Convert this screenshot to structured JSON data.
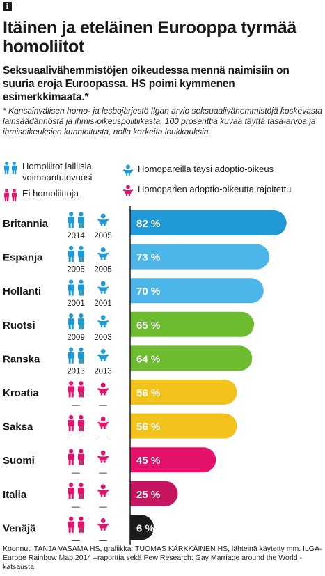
{
  "badge": "i",
  "title": "Itäinen ja eteläinen Eurooppa tyrmää homoliitot",
  "lead": "Seksuaalivähemmistöjen oikeudessa mennä naimisiin on suuria eroja Euroopassa. HS poimi kymmenen esimerkkimaata.*",
  "note": "* Kansainvälisen homo- ja lesbojärjestö Ilgan arvio seksuaalivähemmistöjä koskevasta lainsäädännöstä ja ihmis-oikeuspolitiikasta. 100 prosenttia kuvaa täyttä tasa-arvoa ja ihmisoikeuksien kunnioitusta, nolla karkeita loukkauksia.",
  "legend": {
    "marriage_legal": "Homoliitot laillisia, voimaantulovuosi",
    "no_marriage": "Ei homoliittoja",
    "adoption_full": "Homopareilla täysi adoptio-oikeus",
    "adoption_restricted": "Homoparien adoptio-oikeutta rajoitettu"
  },
  "colors": {
    "blue_icon": "#1e9ad6",
    "pink_icon": "#e3136b",
    "bar_blue": "#1f9ad6",
    "bar_lightblue": "#4cb6e8",
    "bar_green": "#6dbb2f",
    "bar_yellow": "#f3c21b",
    "bar_pink": "#e3136b",
    "bar_dark_pink": "#c81560",
    "bar_black": "#1a1a1a"
  },
  "chart_data": {
    "type": "bar",
    "orientation": "horizontal",
    "xlim": [
      0,
      100
    ],
    "unit": "%",
    "categories": [
      "Britannia",
      "Espanja",
      "Hollanti",
      "Ruotsi",
      "Ranska",
      "Kroatia",
      "Saksa",
      "Suomi",
      "Italia",
      "Venäjä"
    ],
    "values": [
      82,
      73,
      70,
      65,
      64,
      56,
      56,
      45,
      25,
      6
    ],
    "value_labels": [
      "82 %",
      "73 %",
      "70 %",
      "65 %",
      "64 %",
      "56 %",
      "56 %",
      "45 %",
      "25 %",
      "6 %"
    ],
    "bar_colors": [
      "#1f9ad6",
      "#4cb6e8",
      "#4cb6e8",
      "#6dbb2f",
      "#6dbb2f",
      "#f3c21b",
      "#f3c21b",
      "#e3136b",
      "#c81560",
      "#1a1a1a"
    ],
    "marriage_year": [
      "2014",
      "2005",
      "2001",
      "2009",
      "2013",
      "—",
      "—",
      "—",
      "—",
      "—"
    ],
    "adoption_year": [
      "2005",
      "2005",
      "2001",
      "2003",
      "2013",
      "—",
      "—",
      "—",
      "—",
      "—"
    ],
    "marriage_legal": [
      true,
      true,
      true,
      true,
      true,
      false,
      false,
      false,
      false,
      false
    ],
    "adoption_full": [
      true,
      true,
      true,
      true,
      true,
      false,
      false,
      false,
      false,
      false
    ]
  },
  "footer": "Koonnut: TANJA VASAMA HS, grafiikka: TUOMAS KÄRKKÄINEN HS, lähteinä käytetty mm. ILGA-Europe Rainbow Map 2014 –raporttia sekä Pew Research: Gay Marriage around the World -katsausta"
}
